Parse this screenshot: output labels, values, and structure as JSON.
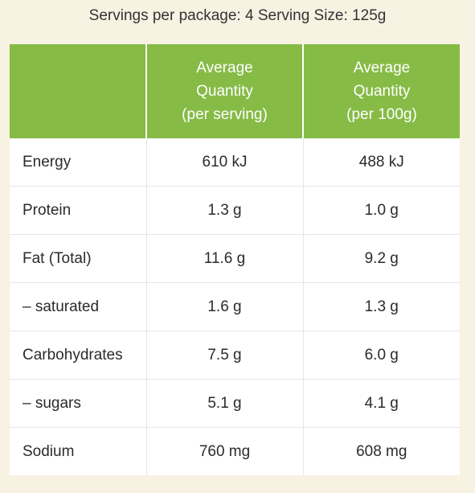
{
  "header": {
    "servings_text": "Servings per package: 4 Serving Size: 125g"
  },
  "table": {
    "columns": [
      {
        "lines": [
          ""
        ]
      },
      {
        "lines": [
          "Average",
          "Quantity",
          "(per serving)"
        ]
      },
      {
        "lines": [
          "Average",
          "Quantity",
          "(per 100g)"
        ]
      }
    ],
    "rows": [
      {
        "nutrient": "Energy",
        "per_serving": "610 kJ",
        "per_100g": "488 kJ"
      },
      {
        "nutrient": "Protein",
        "per_serving": "1.3 g",
        "per_100g": "1.0 g"
      },
      {
        "nutrient": "Fat (Total)",
        "per_serving": "11.6 g",
        "per_100g": "9.2 g"
      },
      {
        "nutrient": "– saturated",
        "per_serving": "1.6 g",
        "per_100g": "1.3 g"
      },
      {
        "nutrient": "Carbohydrates",
        "per_serving": "7.5 g",
        "per_100g": "6.0 g"
      },
      {
        "nutrient": "– sugars",
        "per_serving": "5.1 g",
        "per_100g": "4.1 g"
      },
      {
        "nutrient": "Sodium",
        "per_serving": "760 mg",
        "per_100g": "608 mg"
      }
    ]
  },
  "colors": {
    "header_green": "#86bb46",
    "page_background": "#f8f2e2",
    "table_background": "#ffffff",
    "row_divider": "#e6e6e6"
  }
}
